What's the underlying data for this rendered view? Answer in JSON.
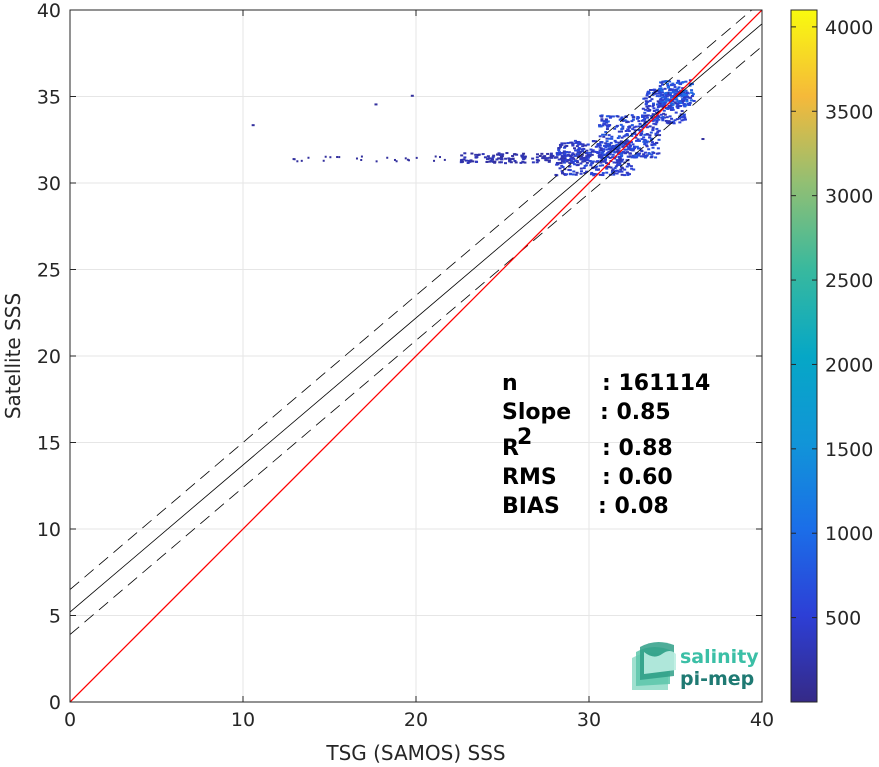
{
  "chart_data": {
    "type": "heatmap",
    "title": "",
    "xlabel": "TSG (SAMOS) SSS",
    "ylabel": "Satellite SSS",
    "xlim": [
      0,
      40
    ],
    "ylim": [
      0,
      40
    ],
    "x_ticks": [
      "0",
      "10",
      "20",
      "30",
      "40"
    ],
    "y_ticks": [
      "0",
      "5",
      "10",
      "15",
      "20",
      "25",
      "30",
      "35",
      "40"
    ],
    "grid": true,
    "colorbar": {
      "ticks": [
        "500",
        "1000",
        "1500",
        "2000",
        "2500",
        "3000",
        "3500",
        "4000"
      ],
      "tick_values": [
        500,
        1000,
        1500,
        2000,
        2500,
        3000,
        3500,
        4000
      ],
      "range": [
        0,
        4100
      ],
      "colormap": "parula"
    },
    "lines": {
      "one_to_one": {
        "slope": 1,
        "intercept": 0,
        "color": "#ff0000"
      },
      "fit": {
        "slope": 0.85,
        "intercept": 5.2,
        "color": "#000000"
      },
      "fit_upper": {
        "slope": 0.85,
        "intercept": 6.5,
        "style": "dashed"
      },
      "fit_lower": {
        "slope": 0.85,
        "intercept": 3.9,
        "style": "dashed"
      }
    },
    "density_clusters": [
      {
        "x": [
          22.5,
          30
        ],
        "y": [
          31.2,
          31.8
        ],
        "level": 250
      },
      {
        "x": [
          28,
          32.5
        ],
        "y": [
          30.5,
          32.5
        ],
        "level": 450
      },
      {
        "x": [
          30.5,
          34
        ],
        "y": [
          31.5,
          34
        ],
        "level": 550
      },
      {
        "x": [
          33,
          35.5
        ],
        "y": [
          33.5,
          35.5
        ],
        "level": 500
      },
      {
        "x": [
          34,
          36
        ],
        "y": [
          34.5,
          36
        ],
        "level": 700
      }
    ],
    "stats": [
      {
        "label": "n",
        "value": ": 161114"
      },
      {
        "label": "Slope",
        "value": ": 0.85"
      },
      {
        "label": "R",
        "sup": "2",
        "value": ": 0.88"
      },
      {
        "label": "RMS",
        "value": ": 0.60"
      },
      {
        "label": "BIAS",
        "value": ": 0.08"
      }
    ]
  },
  "logo": {
    "line1": "salinity",
    "line2": "pi-mep"
  }
}
